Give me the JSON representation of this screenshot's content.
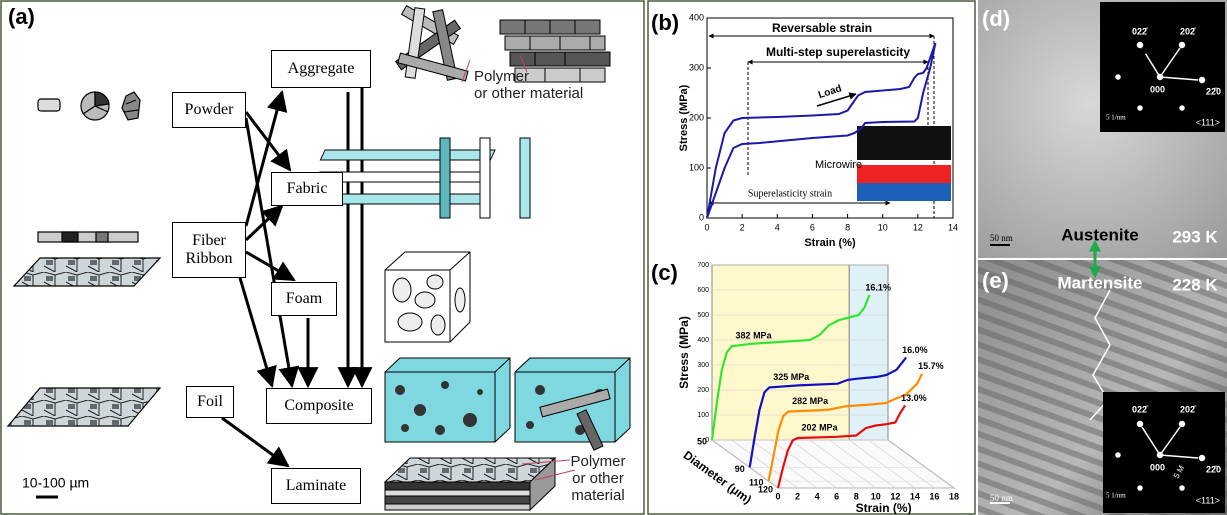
{
  "panel_a": {
    "panel_label": "(a)",
    "nodes": [
      {
        "label": "Powder"
      },
      {
        "label": "Fiber Ribbon"
      },
      {
        "label": "Foil"
      },
      {
        "label": "Aggregate"
      },
      {
        "label": "Fabric"
      },
      {
        "label": "Foam"
      },
      {
        "label": "Composite"
      },
      {
        "label": "Laminate"
      }
    ],
    "annotations": [
      {
        "lines": [
          "Polymer",
          "or other material"
        ]
      },
      {
        "lines": [
          "Polymer",
          "or other",
          "material"
        ]
      }
    ],
    "scale_bar": "10-100 µm"
  },
  "chart_data": [
    {
      "type": "line",
      "panel_label": "(b)",
      "xlabel": "Strain (%)",
      "ylabel": "Stress (MPa)",
      "xlim": [
        0,
        14
      ],
      "xticks": [
        0,
        2,
        4,
        6,
        8,
        10,
        12,
        14
      ],
      "ylim": [
        0,
        400
      ],
      "yticks": [
        0,
        100,
        200,
        300,
        400
      ],
      "series": [
        {
          "color": "#1a1aa8",
          "x": [
            0,
            0.5,
            1,
            1.5,
            2,
            4,
            6,
            7.5,
            8,
            8.3,
            8.6,
            9,
            10,
            11,
            11.5,
            11.8,
            12,
            12.3,
            12.5,
            12.8,
            13
          ],
          "values": [
            0,
            100,
            170,
            195,
            200,
            202,
            205,
            208,
            215,
            230,
            245,
            252,
            255,
            258,
            262,
            280,
            288,
            290,
            300,
            330,
            350
          ]
        },
        {
          "color": "#1a1aa8",
          "x": [
            13,
            12.7,
            12.3,
            12,
            11.8,
            10,
            9,
            8.8,
            8.4,
            8,
            6,
            3,
            2,
            1.5,
            1,
            0.5,
            0
          ],
          "values": [
            350,
            300,
            250,
            200,
            193,
            192,
            190,
            180,
            170,
            165,
            160,
            150,
            148,
            140,
            100,
            50,
            0
          ]
        }
      ],
      "annotations": {
        "reversible": "Reversable strain",
        "multistep": "Multi-step superelasticity",
        "load": "Load",
        "inset": "Microwire",
        "superelastic": "Superelasticity strain"
      }
    },
    {
      "type": "line3d",
      "panel_label": "(c)",
      "xlabel": "Strain (%)",
      "ylabel": "Stress (MPa)",
      "zlabel": "Diameter (μm)",
      "xlim": [
        0,
        18
      ],
      "xticks": [
        0,
        2,
        4,
        6,
        8,
        10,
        12,
        14,
        16,
        18
      ],
      "ylim": [
        0,
        700
      ],
      "yticks": [
        0,
        100,
        200,
        300,
        400,
        500,
        600,
        700
      ],
      "zlim": [
        50,
        120
      ],
      "zticks": [
        50,
        90,
        110,
        120
      ],
      "series": [
        {
          "color": "#2ee82e",
          "z": 50,
          "stress_label": "382 MPa",
          "strain_label": "16.1%",
          "x": [
            0,
            0.5,
            1,
            1.5,
            2,
            4,
            8,
            10,
            11,
            11.5,
            12,
            13,
            14,
            15,
            15.6,
            16.1
          ],
          "values": [
            0,
            150,
            280,
            350,
            375,
            385,
            395,
            400,
            420,
            440,
            460,
            480,
            490,
            500,
            530,
            580
          ]
        },
        {
          "color": "#1010c0",
          "z": 90,
          "stress_label": "325 MPa",
          "strain_label": "16.0%",
          "x": [
            0,
            0.5,
            1,
            1.5,
            2,
            5,
            9,
            10,
            11,
            13,
            14,
            15,
            16
          ],
          "values": [
            0,
            120,
            230,
            300,
            320,
            328,
            335,
            350,
            355,
            362,
            370,
            390,
            440
          ]
        },
        {
          "color": "#ff8c00",
          "z": 110,
          "stress_label": "282 MPa",
          "strain_label": "15.7%",
          "x": [
            0,
            0.5,
            1,
            1.5,
            2,
            6,
            8,
            10,
            12,
            13,
            14,
            15.2,
            15.7
          ],
          "values": [
            0,
            100,
            200,
            260,
            278,
            285,
            300,
            305,
            312,
            330,
            345,
            390,
            430
          ]
        },
        {
          "color": "#e01010",
          "z": 120,
          "stress_label": "202 MPa",
          "strain_label": "13.0%",
          "x": [
            0,
            0.5,
            1,
            1.5,
            2,
            6,
            8,
            9,
            10,
            11,
            12,
            12.5,
            13
          ],
          "values": [
            0,
            80,
            150,
            190,
            200,
            205,
            210,
            240,
            250,
            255,
            262,
            300,
            330
          ]
        }
      ]
    }
  ],
  "panel_d": {
    "panel_label": "(d)",
    "phase": "Austenite",
    "temperature": "293 K",
    "scale_bar": "50 nm",
    "inset": {
      "spots": [
        "022̄",
        "202̄",
        "000",
        "22̄0"
      ],
      "scale": "5 1/nm",
      "zone": "<111>"
    }
  },
  "panel_e": {
    "panel_label": "(e)",
    "phase": "Martensite",
    "temperature": "228 K",
    "scale_bar": "50 nm",
    "inset": {
      "spots": [
        "022̄",
        "202̄",
        "000",
        "22̄0"
      ],
      "marker": "5 M",
      "scale": "5 1/nm",
      "zone": "<111>"
    }
  }
}
